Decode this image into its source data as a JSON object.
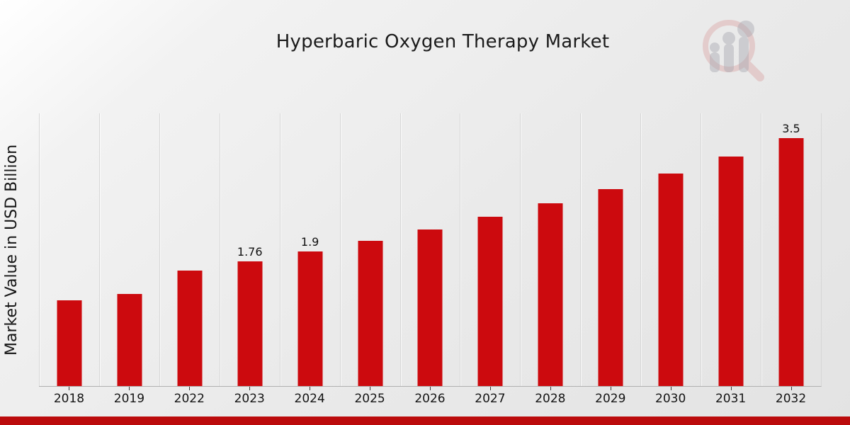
{
  "title": "Hyperbaric Oxygen Therapy Market",
  "ylabel": "Market Value in USD Billion",
  "colors": {
    "bar": "#cc0a0e",
    "footer_band": "#bb0b0c",
    "gridline": "#d6d6d6",
    "axis_line": "#b0b0b0",
    "text": "#1b1b1b",
    "watermark_ring": "#d85555",
    "watermark_bars": "#b9b9c0"
  },
  "watermark": {
    "name": "magnifier-bar-chart-logo"
  },
  "chart_data": {
    "type": "bar",
    "title": "Hyperbaric Oxygen Therapy Market",
    "xlabel": "",
    "ylabel": "Market Value in USD Billion",
    "categories": [
      "2018",
      "2019",
      "2022",
      "2023",
      "2024",
      "2025",
      "2026",
      "2027",
      "2028",
      "2029",
      "2030",
      "2031",
      "2032"
    ],
    "values": [
      1.21,
      1.3,
      1.63,
      1.76,
      1.9,
      2.05,
      2.21,
      2.39,
      2.58,
      2.78,
      3.0,
      3.24,
      3.5
    ],
    "value_labels": [
      "",
      "",
      "",
      "1.76",
      "1.9",
      "",
      "",
      "",
      "",
      "",
      "",
      "",
      "3.5"
    ],
    "unit": "USD Billion",
    "ylim": [
      0,
      3.85
    ],
    "grid": "vertical-only",
    "legend": "none",
    "bar_color": "#cc0a0e"
  }
}
